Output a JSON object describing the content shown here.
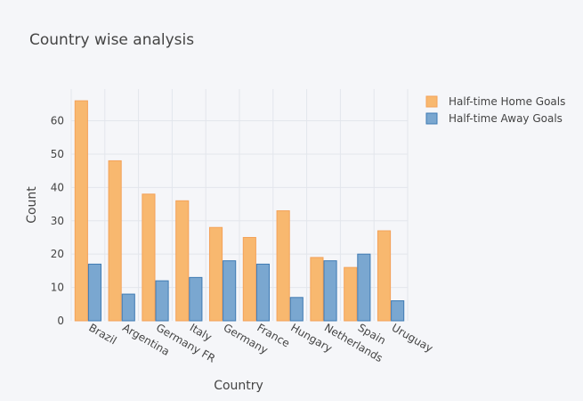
{
  "chart_data": {
    "type": "bar",
    "title": "Country wise analysis",
    "xlabel": "Country",
    "ylabel": "Count",
    "categories": [
      "Brazil",
      "Argentina",
      "Germany FR",
      "Italy",
      "Germany",
      "France",
      "Hungary",
      "Netherlands",
      "Spain",
      "Uruguay"
    ],
    "series": [
      {
        "name": "Half-time Home Goals",
        "color": "#f8b86f",
        "stroke": "#f4a259",
        "values": [
          66,
          48,
          38,
          36,
          28,
          25,
          33,
          19,
          16,
          27
        ]
      },
      {
        "name": "Half-time Away Goals",
        "color": "#7aa7d0",
        "stroke": "#3f7bb3",
        "values": [
          17,
          8,
          12,
          13,
          18,
          17,
          7,
          18,
          20,
          6
        ]
      }
    ],
    "ylim": [
      0,
      69.5
    ],
    "yticks": [
      0,
      10,
      20,
      30,
      40,
      50,
      60
    ],
    "grid": true,
    "legend_position": "top-right"
  }
}
